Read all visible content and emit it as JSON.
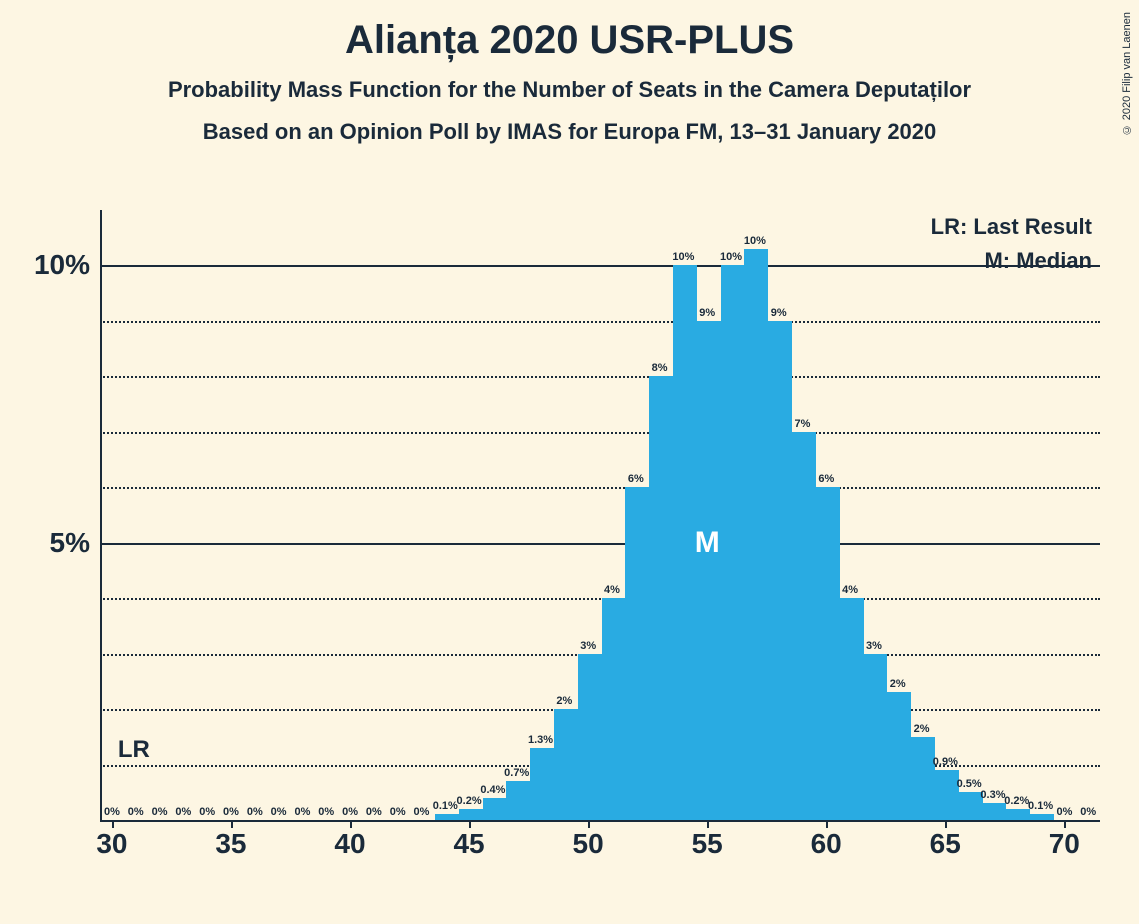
{
  "title": "Alianța 2020 USR-PLUS",
  "subtitle1": "Probability Mass Function for the Number of Seats in the Camera Deputaților",
  "subtitle2": "Based on an Opinion Poll by IMAS for Europa FM, 13–31 January 2020",
  "copyright": "© 2020 Filip van Laenen",
  "legend": {
    "lr": "LR: Last Result",
    "m": "M: Median"
  },
  "lr_marker": "LR",
  "median_marker": "M",
  "chart": {
    "type": "histogram",
    "background_color": "#fdf6e3",
    "bar_color": "#29abe2",
    "text_color": "#1a2a3a",
    "grid_solid_color": "#1a2a3a",
    "grid_dotted_color": "#1a2a3a",
    "title_fontsize": 40,
    "subtitle_fontsize": 22,
    "axis_label_fontsize": 28,
    "bar_label_fontsize": 11,
    "x_min": 30,
    "x_max": 70,
    "y_min": 0,
    "y_max": 11,
    "y_ticks_major": [
      0,
      5,
      10
    ],
    "y_ticks_minor": [
      1,
      2,
      3,
      4,
      6,
      7,
      8,
      9
    ],
    "y_labels": {
      "5": "5%",
      "10": "10%"
    },
    "x_ticks": [
      30,
      35,
      40,
      45,
      50,
      55,
      60,
      65,
      70
    ],
    "median_x": 55,
    "lr_x": 30,
    "bars": [
      {
        "x": 30,
        "value": 0,
        "label": "0%"
      },
      {
        "x": 31,
        "value": 0,
        "label": "0%"
      },
      {
        "x": 32,
        "value": 0,
        "label": "0%"
      },
      {
        "x": 33,
        "value": 0,
        "label": "0%"
      },
      {
        "x": 34,
        "value": 0,
        "label": "0%"
      },
      {
        "x": 35,
        "value": 0,
        "label": "0%"
      },
      {
        "x": 36,
        "value": 0,
        "label": "0%"
      },
      {
        "x": 37,
        "value": 0,
        "label": "0%"
      },
      {
        "x": 38,
        "value": 0,
        "label": "0%"
      },
      {
        "x": 39,
        "value": 0,
        "label": "0%"
      },
      {
        "x": 40,
        "value": 0,
        "label": "0%"
      },
      {
        "x": 41,
        "value": 0,
        "label": "0%"
      },
      {
        "x": 42,
        "value": 0,
        "label": "0%"
      },
      {
        "x": 43,
        "value": 0,
        "label": "0%"
      },
      {
        "x": 44,
        "value": 0.1,
        "label": "0.1%"
      },
      {
        "x": 45,
        "value": 0.2,
        "label": "0.2%"
      },
      {
        "x": 46,
        "value": 0.4,
        "label": "0.4%"
      },
      {
        "x": 47,
        "value": 0.7,
        "label": "0.7%"
      },
      {
        "x": 48,
        "value": 1.3,
        "label": "1.3%"
      },
      {
        "x": 49,
        "value": 2,
        "label": "2%"
      },
      {
        "x": 50,
        "value": 3,
        "label": "3%"
      },
      {
        "x": 51,
        "value": 4,
        "label": "4%"
      },
      {
        "x": 52,
        "value": 6,
        "label": "6%"
      },
      {
        "x": 53,
        "value": 8,
        "label": "8%"
      },
      {
        "x": 54,
        "value": 10,
        "label": "10%"
      },
      {
        "x": 55,
        "value": 9,
        "label": "9%"
      },
      {
        "x": 56,
        "value": 10,
        "label": "10%"
      },
      {
        "x": 57,
        "value": 10.3,
        "label": "10%"
      },
      {
        "x": 58,
        "value": 9,
        "label": "9%"
      },
      {
        "x": 59,
        "value": 7,
        "label": "7%"
      },
      {
        "x": 60,
        "value": 6,
        "label": "6%"
      },
      {
        "x": 61,
        "value": 4,
        "label": "4%"
      },
      {
        "x": 62,
        "value": 3,
        "label": "3%"
      },
      {
        "x": 63,
        "value": 2.3,
        "label": "2%"
      },
      {
        "x": 64,
        "value": 1.5,
        "label": "2%"
      },
      {
        "x": 65,
        "value": 0.9,
        "label": "0.9%"
      },
      {
        "x": 66,
        "value": 0.5,
        "label": "0.5%"
      },
      {
        "x": 67,
        "value": 0.3,
        "label": "0.3%"
      },
      {
        "x": 68,
        "value": 0.2,
        "label": "0.2%"
      },
      {
        "x": 69,
        "value": 0.1,
        "label": "0.1%"
      },
      {
        "x": 70,
        "value": 0,
        "label": "0%"
      },
      {
        "x": 71,
        "value": 0,
        "label": "0%"
      }
    ]
  }
}
